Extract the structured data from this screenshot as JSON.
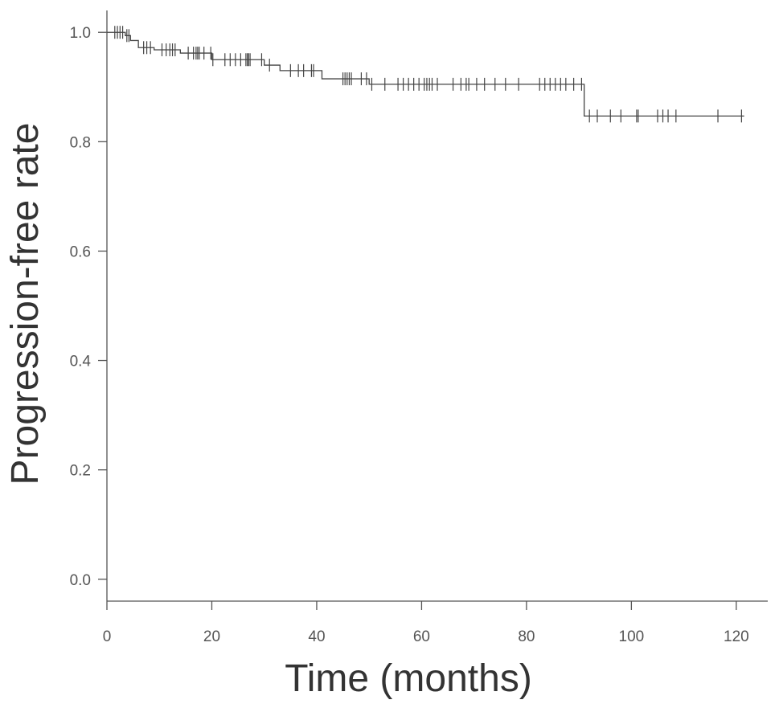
{
  "chart_data": {
    "type": "line",
    "subtype": "kaplan-meier",
    "title": "",
    "xlabel": "Time (months)",
    "ylabel": "Progression-free rate",
    "xlim": [
      0,
      126
    ],
    "ylim": [
      -0.04,
      1.04
    ],
    "xticks": [
      0,
      20,
      40,
      60,
      80,
      100,
      120
    ],
    "yticks": [
      0.0,
      0.2,
      0.4,
      0.6,
      0.8,
      1.0
    ],
    "xtick_labels": [
      "0",
      "20",
      "40",
      "60",
      "80",
      "100",
      "120"
    ],
    "ytick_labels": [
      "0.0",
      "0.2",
      "0.4",
      "0.6",
      "0.8",
      "1.0"
    ],
    "grid": false,
    "legend": "none",
    "series": [
      {
        "steps": [
          [
            0,
            1.0
          ],
          [
            3.5,
            0.994
          ],
          [
            4.5,
            0.985
          ],
          [
            6,
            0.972
          ],
          [
            9,
            0.968
          ],
          [
            14,
            0.962
          ],
          [
            20,
            0.95
          ],
          [
            30,
            0.94
          ],
          [
            33,
            0.93
          ],
          [
            41,
            0.915
          ],
          [
            50,
            0.905
          ],
          [
            91,
            0.847
          ],
          [
            121.5,
            0.847
          ]
        ],
        "censor_times": [
          1.5,
          2,
          2.5,
          3,
          3.8,
          4.2,
          7,
          7.6,
          8.3,
          10.5,
          11.3,
          12,
          12.5,
          13,
          15.5,
          16.5,
          17,
          17.3,
          17.6,
          18.5,
          19.8,
          20.2,
          22.5,
          23.5,
          24.5,
          25.5,
          26.5,
          26.8,
          27,
          27.3,
          29.5,
          31,
          35,
          36.5,
          37.5,
          39,
          39.4,
          45,
          45.4,
          45.8,
          46.2,
          46.6,
          48.5,
          49.5,
          50.5,
          53,
          55.5,
          56.5,
          57.5,
          58.5,
          59.5,
          60.5,
          61,
          61.5,
          62,
          63,
          66,
          67.5,
          68.5,
          69,
          70.5,
          72,
          74,
          76,
          78.5,
          82.5,
          83.5,
          84.5,
          85.5,
          86.5,
          87.5,
          89,
          90.5,
          92,
          93.5,
          96,
          98,
          101,
          101.3,
          105,
          106,
          107,
          108.5,
          116.5,
          121
        ]
      }
    ]
  }
}
